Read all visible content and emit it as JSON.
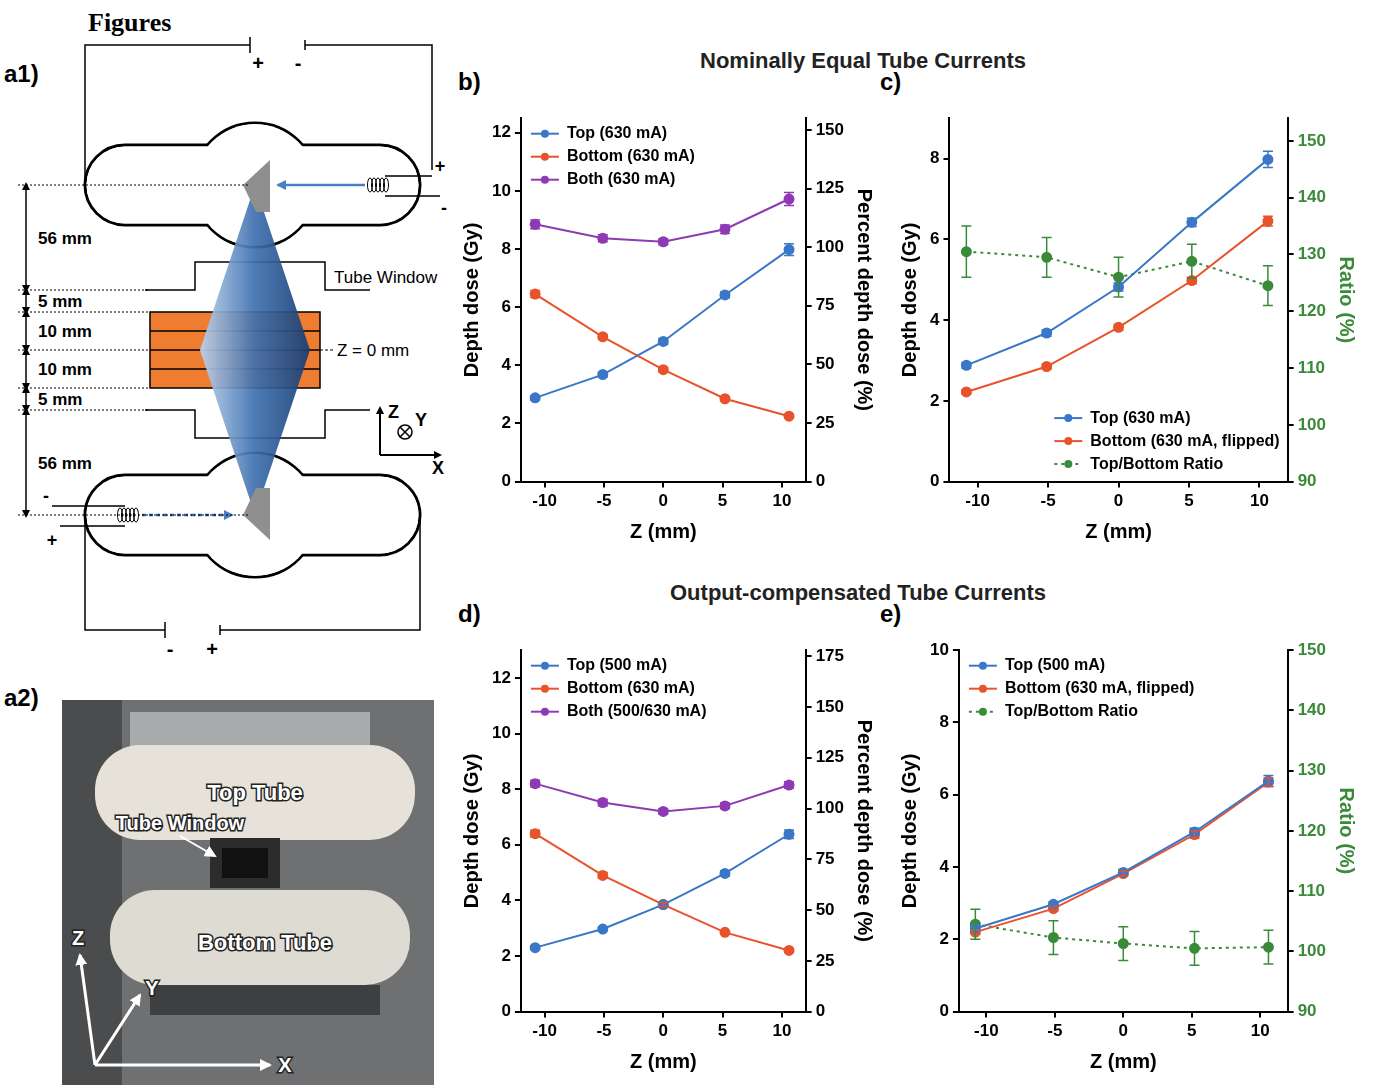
{
  "figure_title": "Figures",
  "headings": [
    "Nominally Equal Tube Currents",
    "Output-compensated Tube Currents"
  ],
  "diagram": {
    "panel_label": "a1)",
    "dimensions": [
      "56 mm",
      "5 mm",
      "10 mm",
      "10 mm",
      "5 mm",
      "56 mm"
    ],
    "window_label": "Tube Window",
    "center_label": "Z = 0 mm",
    "axes": [
      "Z",
      "Y",
      "X"
    ],
    "top_circuit": [
      "+",
      "-"
    ],
    "top_tube_terminals": [
      "+",
      "-"
    ],
    "bottom_tube_terminals": [
      "-",
      "+"
    ],
    "bottom_circuit": [
      "-",
      "+"
    ]
  },
  "photo": {
    "panel_label": "a2)",
    "labels": [
      "Top Tube",
      "Tube Window",
      "Bottom Tube"
    ],
    "axes": [
      "Z",
      "Y",
      "X"
    ]
  },
  "chart_data": [
    {
      "type": "line",
      "panel_label": "b)",
      "x_label": "Z (mm)",
      "y_label": "Depth dose (Gy)",
      "y2_label": "Percent depth dose (%)",
      "x": [
        -10.8,
        -5.1,
        0,
        5.2,
        10.6
      ],
      "xlim": [
        -12,
        12
      ],
      "xticks": [
        -10,
        -5,
        0,
        5,
        10
      ],
      "ylim": [
        0,
        12.5
      ],
      "yticks": [
        0,
        2,
        4,
        6,
        8,
        10,
        12
      ],
      "y2lim": [
        0,
        155
      ],
      "y2ticks": [
        0,
        25,
        50,
        75,
        100,
        125,
        150
      ],
      "grid": false,
      "legend": "upper left",
      "marker": "circle",
      "series": [
        {
          "name": "Top (630 mA)",
          "color": "#3b77c8",
          "line_style": "solid",
          "values": [
            2.88,
            3.68,
            4.82,
            6.42,
            7.98
          ],
          "errors": [
            0.07,
            0.08,
            0.1,
            0.1,
            0.2
          ]
        },
        {
          "name": "Bottom (630 mA)",
          "color": "#e8532b",
          "line_style": "solid",
          "values": [
            6.45,
            4.98,
            3.85,
            2.85,
            2.25
          ],
          "errors": [
            0.12,
            0.08,
            0.07,
            0.06,
            0.05
          ]
        },
        {
          "name": "Both (630 mA)",
          "color": "#8e3ab4",
          "line_style": "solid",
          "values": [
            8.85,
            8.37,
            8.25,
            8.68,
            9.72
          ],
          "errors": [
            0.15,
            0.12,
            0.1,
            0.15,
            0.22
          ]
        }
      ]
    },
    {
      "type": "line",
      "panel_label": "c)",
      "x_label": "Z (mm)",
      "y_label": "Depth dose (Gy)",
      "y2_label": "Ratio (%)",
      "x": [
        -10.8,
        -5.1,
        0,
        5.2,
        10.6
      ],
      "xlim": [
        -12,
        12
      ],
      "xticks": [
        -10,
        -5,
        0,
        5,
        10
      ],
      "ylim": [
        0,
        9
      ],
      "yticks": [
        0,
        2,
        4,
        6,
        8
      ],
      "y2lim": [
        90,
        154
      ],
      "y2ticks": [
        90,
        100,
        110,
        120,
        130,
        140,
        150
      ],
      "grid": false,
      "legend": "lower right",
      "marker": "circle",
      "series": [
        {
          "name": "Top (630 mA)",
          "color": "#3b77c8",
          "line_style": "solid",
          "values": [
            2.88,
            3.68,
            4.82,
            6.42,
            7.98
          ],
          "errors": [
            0.07,
            0.08,
            0.1,
            0.1,
            0.2
          ]
        },
        {
          "name": "Bottom (630 mA, flipped)",
          "color": "#e8532b",
          "line_style": "solid",
          "values": [
            2.22,
            2.85,
            3.82,
            4.98,
            6.45
          ],
          "errors": [
            0.05,
            0.06,
            0.07,
            0.08,
            0.12
          ]
        },
        {
          "name": "Top/Bottom Ratio",
          "color": "#3a8a3a",
          "line_style": "dotted",
          "axis": "y2",
          "values": [
            130.5,
            129.5,
            126,
            128.8,
            124.5
          ],
          "errors": [
            4.5,
            3.5,
            3.5,
            3,
            3.5
          ]
        }
      ]
    },
    {
      "type": "line",
      "panel_label": "d)",
      "x_label": "Z (mm)",
      "y_label": "Depth dose (Gy)",
      "y2_label": "Percent depth dose (%)",
      "x": [
        -10.8,
        -5.1,
        0,
        5.2,
        10.6
      ],
      "xlim": [
        -12,
        12
      ],
      "xticks": [
        -10,
        -5,
        0,
        5,
        10
      ],
      "ylim": [
        0,
        13
      ],
      "yticks": [
        0,
        2,
        4,
        6,
        8,
        10,
        12
      ],
      "y2lim": [
        0,
        178
      ],
      "y2ticks": [
        0,
        25,
        50,
        75,
        100,
        125,
        150,
        175
      ],
      "grid": false,
      "legend": "upper left",
      "marker": "circle",
      "series": [
        {
          "name": "Top (500 mA)",
          "color": "#3b77c8",
          "line_style": "solid",
          "values": [
            2.3,
            2.97,
            3.85,
            4.97,
            6.38
          ],
          "errors": [
            0.06,
            0.07,
            0.08,
            0.1,
            0.15
          ]
        },
        {
          "name": "Bottom (630 mA)",
          "color": "#e8532b",
          "line_style": "solid",
          "values": [
            6.4,
            4.9,
            3.85,
            2.85,
            2.2
          ],
          "errors": [
            0.12,
            0.1,
            0.07,
            0.06,
            0.05
          ]
        },
        {
          "name": "Both (500/630 mA)",
          "color": "#8e3ab4",
          "line_style": "solid",
          "values": [
            8.2,
            7.52,
            7.2,
            7.4,
            8.15
          ],
          "errors": [
            0.12,
            0.12,
            0.1,
            0.1,
            0.12
          ]
        }
      ]
    },
    {
      "type": "line",
      "panel_label": "e)",
      "x_label": "Z (mm)",
      "y_label": "Depth dose (Gy)",
      "y2_label": "Ratio (%)",
      "x": [
        -10.8,
        -5.1,
        0,
        5.2,
        10.6
      ],
      "xlim": [
        -12,
        12
      ],
      "xticks": [
        -10,
        -5,
        0,
        5,
        10
      ],
      "ylim": [
        0,
        10
      ],
      "yticks": [
        0,
        2,
        4,
        6,
        8,
        10
      ],
      "y2lim": [
        90,
        150
      ],
      "y2ticks": [
        90,
        100,
        110,
        120,
        130,
        140,
        150
      ],
      "grid": false,
      "legend": "upper left",
      "marker": "circle",
      "series": [
        {
          "name": "Top (500 mA)",
          "color": "#3b77c8",
          "line_style": "solid",
          "values": [
            2.3,
            2.97,
            3.85,
            4.97,
            6.38
          ],
          "errors": [
            0.06,
            0.07,
            0.08,
            0.1,
            0.15
          ]
        },
        {
          "name": "Bottom (630 mA, flipped)",
          "color": "#e8532b",
          "line_style": "solid",
          "values": [
            2.2,
            2.85,
            3.82,
            4.9,
            6.35
          ],
          "errors": [
            0.05,
            0.06,
            0.07,
            0.1,
            0.12
          ]
        },
        {
          "name": "Top/Bottom Ratio",
          "color": "#3a8a3a",
          "line_style": "dotted",
          "axis": "y2",
          "values": [
            104.5,
            102.3,
            101.3,
            100.5,
            100.7
          ],
          "errors": [
            2.5,
            2.8,
            2.8,
            2.8,
            2.8
          ]
        }
      ]
    }
  ]
}
